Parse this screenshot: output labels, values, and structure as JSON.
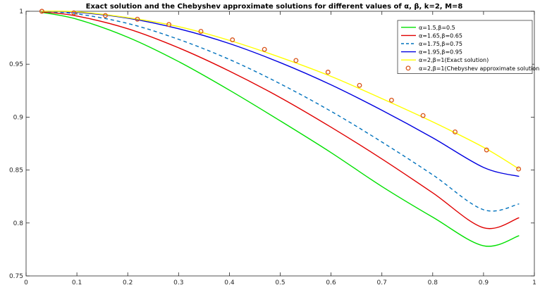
{
  "chart_data": {
    "type": "line",
    "title": "Exact solution and the Chebyshev approximate solutions for different values of    α, β, k=2, M=8",
    "xlabel": "",
    "ylabel": "",
    "xlim": [
      0,
      1
    ],
    "ylim": [
      0.75,
      1
    ],
    "x_ticks": [
      "0",
      "0.1",
      "0.2",
      "0.3",
      "0.4",
      "0.5",
      "0.6",
      "0.7",
      "0.8",
      "0.9",
      "1"
    ],
    "y_ticks": [
      "0.75",
      "0.8",
      "0.85",
      "0.9",
      "0.95",
      "1"
    ],
    "grid": false,
    "legend_position": "top-right",
    "series": [
      {
        "name": "α=1.5,β=0.5",
        "color": "#00e000",
        "style": "solid",
        "x": [
          0.03,
          0.1,
          0.2,
          0.3,
          0.4,
          0.5,
          0.6,
          0.7,
          0.8,
          0.9,
          0.97
        ],
        "y": [
          0.999,
          0.9925,
          0.9755,
          0.9525,
          0.9255,
          0.8965,
          0.8665,
          0.8345,
          0.8055,
          0.7785,
          0.788
        ]
      },
      {
        "name": "α=1.65,β=0.65",
        "color": "#e00000",
        "style": "solid",
        "x": [
          0.03,
          0.1,
          0.2,
          0.3,
          0.4,
          0.5,
          0.6,
          0.7,
          0.8,
          0.9,
          0.97
        ],
        "y": [
          0.9995,
          0.9955,
          0.9835,
          0.9655,
          0.9435,
          0.9185,
          0.8905,
          0.8605,
          0.8285,
          0.7955,
          0.805
        ]
      },
      {
        "name": "α=1.75,β=0.75",
        "color": "#0072bd",
        "style": "dashed",
        "x": [
          0.03,
          0.1,
          0.2,
          0.3,
          0.4,
          0.5,
          0.6,
          0.7,
          0.8,
          0.9,
          0.97
        ],
        "y": [
          0.9998,
          0.9975,
          0.9885,
          0.9735,
          0.9545,
          0.9315,
          0.9055,
          0.8765,
          0.8455,
          0.8125,
          0.818
        ]
      },
      {
        "name": "α=1.95,β=0.95",
        "color": "#0000e0",
        "style": "solid",
        "x": [
          0.03,
          0.1,
          0.2,
          0.3,
          0.4,
          0.5,
          0.6,
          0.7,
          0.8,
          0.9,
          0.97
        ],
        "y": [
          1.0,
          0.999,
          0.9935,
          0.9835,
          0.9695,
          0.9515,
          0.9305,
          0.9065,
          0.8805,
          0.8525,
          0.844
        ]
      },
      {
        "name": "α=2,β=1(Exact solution)",
        "color": "#ffff00",
        "style": "solid",
        "x": [
          0.03,
          0.1,
          0.2,
          0.3,
          0.4,
          0.5,
          0.6,
          0.7,
          0.8,
          0.9,
          0.97
        ],
        "y": [
          1.0,
          0.9995,
          0.994,
          0.9855,
          0.9725,
          0.9565,
          0.9385,
          0.9175,
          0.8955,
          0.8715,
          0.851
        ]
      },
      {
        "name": "α=2,β=1(Chebyshev approximate solution)",
        "color": "#d95319",
        "style": "markers",
        "x": [
          0.031,
          0.094,
          0.156,
          0.219,
          0.281,
          0.344,
          0.406,
          0.469,
          0.531,
          0.594,
          0.656,
          0.719,
          0.781,
          0.844,
          0.906,
          0.969
        ],
        "y": [
          1.0,
          0.9985,
          0.996,
          0.9925,
          0.9875,
          0.981,
          0.973,
          0.964,
          0.9535,
          0.9425,
          0.93,
          0.916,
          0.9015,
          0.886,
          0.869,
          0.851
        ]
      }
    ]
  }
}
